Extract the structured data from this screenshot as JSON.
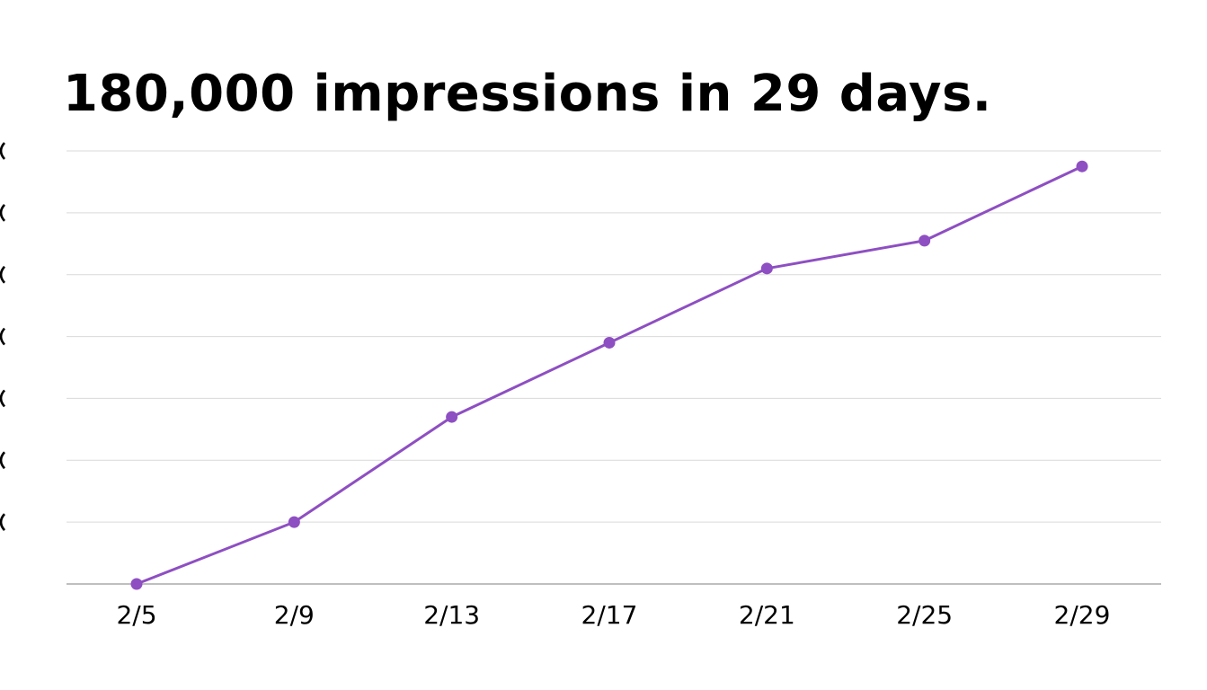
{
  "chart_data": {
    "type": "line",
    "title": "180,000 impressions in 29 days.",
    "xlabel": "",
    "ylabel": "",
    "categories": [
      "2/5",
      "2/9",
      "2/13",
      "2/17",
      "2/21",
      "2/25",
      "2/29"
    ],
    "series": [
      {
        "values": [
          0,
          10,
          27,
          39,
          51,
          55.5,
          67.5
        ],
        "color": "#8e4fc2"
      }
    ],
    "ylim": [
      0,
      70
    ],
    "y_gridline_step": 10,
    "y_tick_labels_visible": false,
    "grid": true,
    "markers": true,
    "legend": "none"
  }
}
